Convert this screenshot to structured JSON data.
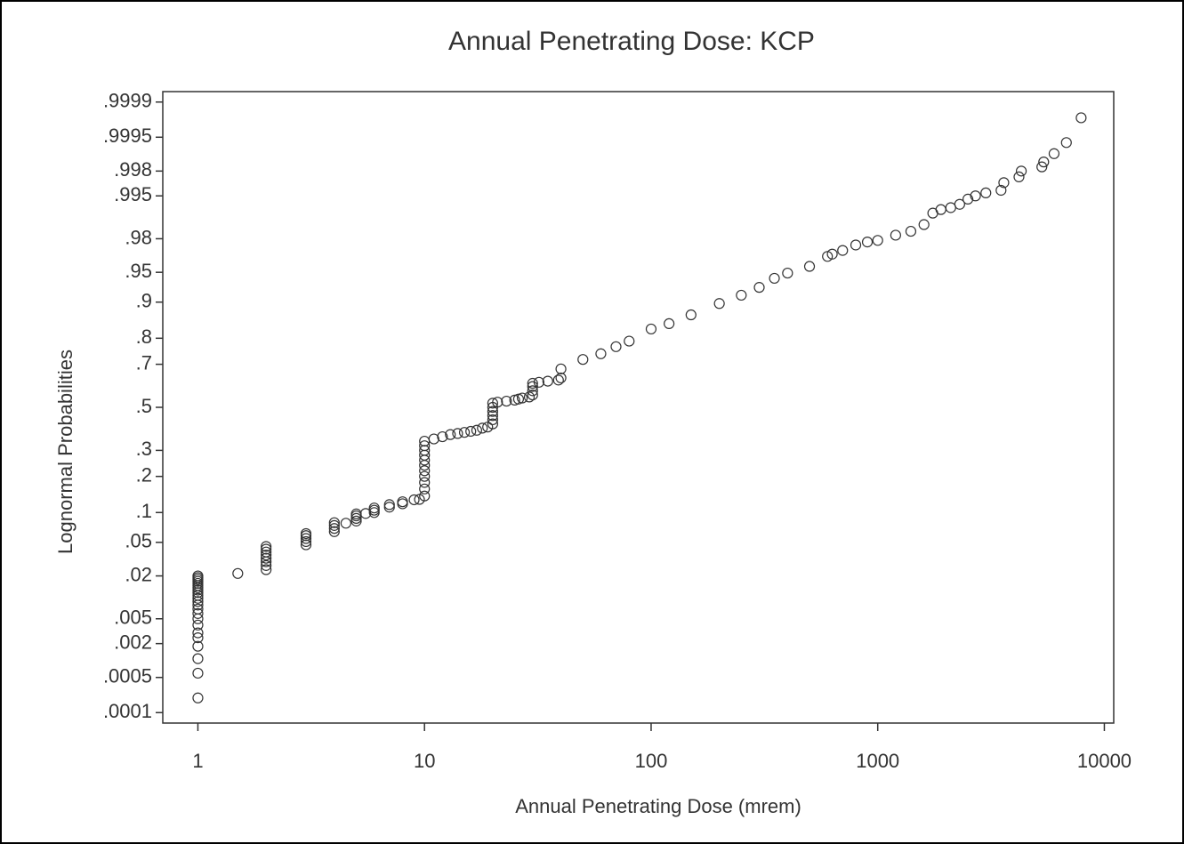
{
  "chart_data": {
    "type": "scatter",
    "title": "Annual Penetrating Dose: KCP",
    "x_label": "Annual Penetrating Dose (mrem)",
    "y_label": "Lognormal Probabilities",
    "xscale": "log",
    "yscale": "probit",
    "grid": false,
    "color": "#333333",
    "xlim": [
      0.7,
      11000
    ],
    "xticks": [
      1,
      10,
      100,
      1000,
      10000
    ],
    "ylim": [
      6e-05,
      0.99994
    ],
    "yticks": [
      {
        "value": 0.9999,
        "label": ".9999"
      },
      {
        "value": 0.9995,
        "label": ".9995"
      },
      {
        "value": 0.998,
        "label": ".998"
      },
      {
        "value": 0.995,
        "label": ".995"
      },
      {
        "value": 0.98,
        "label": ".98"
      },
      {
        "value": 0.95,
        "label": ".95"
      },
      {
        "value": 0.9,
        "label": ".9"
      },
      {
        "value": 0.8,
        "label": ".8"
      },
      {
        "value": 0.7,
        "label": ".7"
      },
      {
        "value": 0.5,
        "label": ".5"
      },
      {
        "value": 0.3,
        "label": ".3"
      },
      {
        "value": 0.2,
        "label": ".2"
      },
      {
        "value": 0.1,
        "label": ".1"
      },
      {
        "value": 0.05,
        "label": ".05"
      },
      {
        "value": 0.02,
        "label": ".02"
      },
      {
        "value": 0.005,
        "label": ".005"
      },
      {
        "value": 0.002,
        "label": ".002"
      },
      {
        "value": 0.0005,
        "label": ".0005"
      },
      {
        "value": 0.0001,
        "label": ".0001"
      }
    ],
    "x": [
      1,
      1,
      1,
      1,
      1,
      1,
      1,
      1,
      1,
      1,
      1,
      1,
      1,
      1,
      1,
      1,
      1,
      1,
      1,
      1,
      1,
      1,
      1,
      1.5,
      2,
      2,
      2,
      2,
      2,
      2,
      2,
      2,
      3,
      3,
      3,
      3,
      3,
      4,
      4,
      4,
      4,
      4.5,
      5,
      5,
      5,
      5,
      5.5,
      6,
      6,
      6,
      7,
      7,
      8,
      8,
      9,
      9.5,
      10,
      10,
      10,
      10,
      10,
      10,
      10,
      10,
      10,
      10,
      10,
      11,
      12,
      13,
      14,
      15,
      16,
      17,
      18,
      19,
      20,
      20,
      20,
      20,
      20,
      20,
      21,
      23,
      25,
      26,
      27,
      29,
      30,
      30,
      30,
      30,
      32,
      35,
      39,
      40,
      40,
      50,
      60,
      70,
      80,
      100,
      120,
      150,
      200,
      250,
      300,
      350,
      400,
      500,
      600,
      630,
      700,
      800,
      900,
      1000,
      1200,
      1400,
      1600,
      1750,
      1900,
      2100,
      2300,
      2500,
      2700,
      3000,
      3500,
      3600,
      4200,
      4300,
      5300,
      5400,
      6000,
      6800,
      7900
    ],
    "values": [
      0.0002,
      0.0006,
      0.0011,
      0.0018,
      0.0025,
      0.003,
      0.004,
      0.005,
      0.006,
      0.007,
      0.008,
      0.009,
      0.01,
      0.011,
      0.012,
      0.013,
      0.014,
      0.015,
      0.016,
      0.017,
      0.018,
      0.019,
      0.02,
      0.0215,
      0.024,
      0.027,
      0.03,
      0.033,
      0.036,
      0.039,
      0.042,
      0.045,
      0.047,
      0.051,
      0.055,
      0.059,
      0.062,
      0.065,
      0.07,
      0.075,
      0.08,
      0.079,
      0.083,
      0.088,
      0.093,
      0.097,
      0.098,
      0.1,
      0.105,
      0.11,
      0.112,
      0.118,
      0.12,
      0.125,
      0.13,
      0.131,
      0.14,
      0.16,
      0.18,
      0.2,
      0.22,
      0.24,
      0.26,
      0.28,
      0.3,
      0.32,
      0.34,
      0.35,
      0.36,
      0.37,
      0.375,
      0.38,
      0.385,
      0.39,
      0.4,
      0.405,
      0.42,
      0.44,
      0.46,
      0.48,
      0.5,
      0.52,
      0.525,
      0.53,
      0.535,
      0.54,
      0.545,
      0.55,
      0.56,
      0.58,
      0.6,
      0.615,
      0.62,
      0.625,
      0.63,
      0.64,
      0.68,
      0.72,
      0.743,
      0.77,
      0.79,
      0.83,
      0.846,
      0.87,
      0.897,
      0.914,
      0.928,
      0.942,
      0.949,
      0.957,
      0.967,
      0.969,
      0.972,
      0.976,
      0.978,
      0.979,
      0.982,
      0.984,
      0.987,
      0.991,
      0.992,
      0.9925,
      0.9933,
      0.9944,
      0.995,
      0.9955,
      0.9959,
      0.9969,
      0.9975,
      0.998,
      0.9983,
      0.9986,
      0.999,
      0.99937,
      0.99979
    ]
  }
}
